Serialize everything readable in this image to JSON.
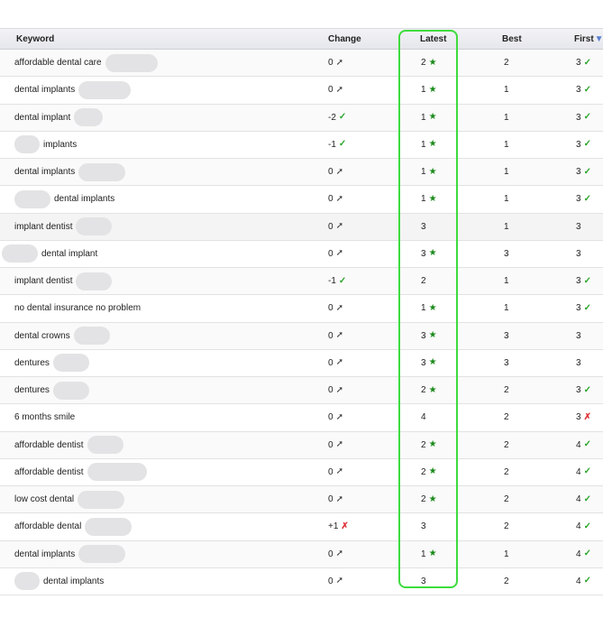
{
  "headers": {
    "keyword": "Keyword",
    "change": "Change",
    "latest": "Latest",
    "best": "Best",
    "first": "First"
  },
  "icons": {
    "sort_first": "sort-down-icon",
    "star": "star-icon",
    "pin": "pin-icon",
    "thumb_up": "thumbs-up-icon",
    "thumb_down": "thumbs-down-icon"
  },
  "colors": {
    "highlight": "#3ddc3d",
    "star": "#1a8a1a",
    "up": "#2aa52a",
    "down": "#e0353b"
  },
  "rows": [
    {
      "keyword": "affordable dental care",
      "change": "0",
      "change_icon": "pin",
      "latest": "2",
      "latest_icon": "star",
      "best": "2",
      "first": "3",
      "first_icon": "up"
    },
    {
      "keyword": "dental implants",
      "change": "0",
      "change_icon": "pin",
      "latest": "1",
      "latest_icon": "star",
      "best": "1",
      "first": "3",
      "first_icon": "up"
    },
    {
      "keyword": "dental implant",
      "change": "-2",
      "change_icon": "up",
      "latest": "1",
      "latest_icon": "star",
      "best": "1",
      "first": "3",
      "first_icon": "up"
    },
    {
      "keyword": "implants",
      "change": "-1",
      "change_icon": "up",
      "latest": "1",
      "latest_icon": "star",
      "best": "1",
      "first": "3",
      "first_icon": "up",
      "prefix_blur": true
    },
    {
      "keyword": "dental implants",
      "change": "0",
      "change_icon": "pin",
      "latest": "1",
      "latest_icon": "star",
      "best": "1",
      "first": "3",
      "first_icon": "up"
    },
    {
      "keyword": "dental implants",
      "change": "0",
      "change_icon": "pin",
      "latest": "1",
      "latest_icon": "star",
      "best": "1",
      "first": "3",
      "first_icon": "up",
      "prefix_blur": true
    },
    {
      "keyword": "implant dentist",
      "change": "0",
      "change_icon": "pin",
      "latest": "3",
      "latest_icon": "",
      "best": "1",
      "first": "3",
      "first_icon": ""
    },
    {
      "keyword": "dental implant",
      "change": "0",
      "change_icon": "pin",
      "latest": "3",
      "latest_icon": "star",
      "best": "3",
      "first": "3",
      "first_icon": "",
      "prefix_blur": true
    },
    {
      "keyword": "implant dentist",
      "change": "-1",
      "change_icon": "up",
      "latest": "2",
      "latest_icon": "",
      "best": "1",
      "first": "3",
      "first_icon": "up"
    },
    {
      "keyword": "no dental insurance no problem",
      "change": "0",
      "change_icon": "pin",
      "latest": "1",
      "latest_icon": "star",
      "best": "1",
      "first": "3",
      "first_icon": "up",
      "no_blur": true
    },
    {
      "keyword": "dental crowns",
      "change": "0",
      "change_icon": "pin",
      "latest": "3",
      "latest_icon": "star",
      "best": "3",
      "first": "3",
      "first_icon": ""
    },
    {
      "keyword": "dentures",
      "change": "0",
      "change_icon": "pin",
      "latest": "3",
      "latest_icon": "star",
      "best": "3",
      "first": "3",
      "first_icon": ""
    },
    {
      "keyword": "dentures",
      "change": "0",
      "change_icon": "pin",
      "latest": "2",
      "latest_icon": "star",
      "best": "2",
      "first": "3",
      "first_icon": "up"
    },
    {
      "keyword": "6 months smile",
      "change": "0",
      "change_icon": "pin",
      "latest": "4",
      "latest_icon": "",
      "best": "2",
      "first": "3",
      "first_icon": "down",
      "no_blur": true
    },
    {
      "keyword": "affordable dentist",
      "change": "0",
      "change_icon": "pin",
      "latest": "2",
      "latest_icon": "star",
      "best": "2",
      "first": "4",
      "first_icon": "up"
    },
    {
      "keyword": "affordable dentist",
      "change": "0",
      "change_icon": "pin",
      "latest": "2",
      "latest_icon": "star",
      "best": "2",
      "first": "4",
      "first_icon": "up"
    },
    {
      "keyword": "low cost dental",
      "change": "0",
      "change_icon": "pin",
      "latest": "2",
      "latest_icon": "star",
      "best": "2",
      "first": "4",
      "first_icon": "up"
    },
    {
      "keyword": "affordable dental",
      "change": "+1",
      "change_icon": "down",
      "latest": "3",
      "latest_icon": "",
      "best": "2",
      "first": "4",
      "first_icon": "up"
    },
    {
      "keyword": "dental implants",
      "change": "0",
      "change_icon": "pin",
      "latest": "1",
      "latest_icon": "star",
      "best": "1",
      "first": "4",
      "first_icon": "up"
    },
    {
      "keyword": "dental implants",
      "change": "0",
      "change_icon": "pin",
      "latest": "3",
      "latest_icon": "",
      "best": "2",
      "first": "4",
      "first_icon": "up",
      "prefix_blur": true
    }
  ]
}
